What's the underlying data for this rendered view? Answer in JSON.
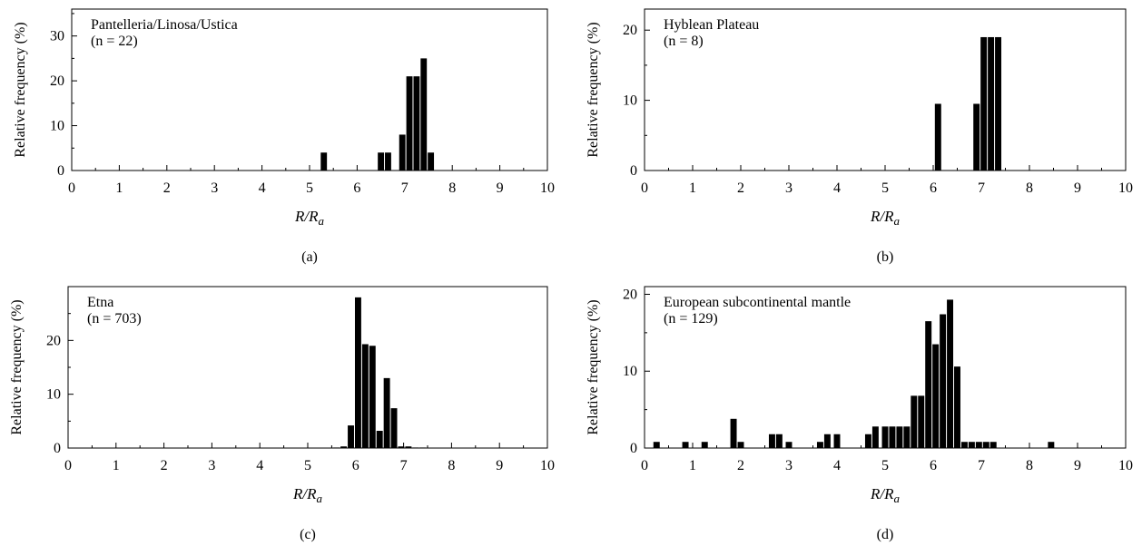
{
  "figure": {
    "panels": [
      {
        "id": "a",
        "caption": "(a)",
        "site": "Pantelleria/Linosa/Ustica",
        "n_label": "(n = 22)"
      },
      {
        "id": "b",
        "caption": "(b)",
        "site": "Hyblean Plateau",
        "n_label": "(n = 8)"
      },
      {
        "id": "c",
        "caption": "(c)",
        "site": "Etna",
        "n_label": "(n = 703)"
      },
      {
        "id": "d",
        "caption": "(d)",
        "site": "European subcontinental mantle",
        "n_label": "(n = 129)"
      }
    ]
  },
  "chart_data": [
    {
      "type": "bar",
      "title": "Pantelleria/Linosa/Ustica",
      "annotation": "(n = 22)",
      "xlabel": "R/Ra",
      "ylabel": "Relative frequency (%)",
      "xlim": [
        0,
        10
      ],
      "ylim": [
        0,
        36
      ],
      "xticks": [
        0,
        1,
        2,
        3,
        4,
        5,
        6,
        7,
        8,
        9,
        10
      ],
      "yticks": [
        0,
        10,
        20,
        30
      ],
      "bin_width": 0.15,
      "x": [
        5.3,
        6.5,
        6.65,
        6.95,
        7.1,
        7.25,
        7.4,
        7.55
      ],
      "values": [
        4,
        4,
        4,
        8,
        21,
        21,
        25,
        4
      ]
    },
    {
      "type": "bar",
      "title": "Hyblean Plateau",
      "annotation": "(n = 8)",
      "xlabel": "R/Ra",
      "ylabel": "Relative frequency (%)",
      "xlim": [
        0,
        10
      ],
      "ylim": [
        0,
        23
      ],
      "xticks": [
        0,
        1,
        2,
        3,
        4,
        5,
        6,
        7,
        8,
        9,
        10
      ],
      "yticks": [
        0,
        10,
        20
      ],
      "bin_width": 0.15,
      "x": [
        6.1,
        6.9,
        7.05,
        7.2,
        7.35
      ],
      "values": [
        9.5,
        9.5,
        19,
        19,
        19
      ]
    },
    {
      "type": "bar",
      "title": "Etna",
      "annotation": "(n = 703)",
      "xlabel": "R/Ra",
      "ylabel": "Relative frequency (%)",
      "xlim": [
        0,
        10
      ],
      "ylim": [
        0,
        30
      ],
      "xticks": [
        0,
        1,
        2,
        3,
        4,
        5,
        6,
        7,
        8,
        9,
        10
      ],
      "yticks": [
        0,
        10,
        20
      ],
      "bin_width": 0.15,
      "x": [
        5.6,
        5.75,
        5.9,
        6.05,
        6.2,
        6.35,
        6.5,
        6.65,
        6.8,
        6.95,
        7.1,
        7.25,
        7.4
      ],
      "values": [
        0.1,
        0.3,
        4.2,
        28,
        19.3,
        19,
        3.2,
        13,
        7.4,
        0.3,
        0.3,
        0.1,
        0.1
      ]
    },
    {
      "type": "bar",
      "title": "European subcontinental mantle",
      "annotation": "(n = 129)",
      "xlabel": "R/Ra",
      "ylabel": "Relative frequency (%)",
      "xlim": [
        0,
        10
      ],
      "ylim": [
        0,
        21
      ],
      "xticks": [
        0,
        1,
        2,
        3,
        4,
        5,
        6,
        7,
        8,
        9,
        10
      ],
      "yticks": [
        0,
        10,
        20
      ],
      "bin_width": 0.15,
      "x": [
        0.25,
        0.85,
        1.25,
        1.85,
        2.0,
        2.65,
        2.8,
        3.0,
        3.65,
        3.8,
        4.0,
        4.65,
        4.8,
        5.0,
        5.15,
        5.3,
        5.45,
        5.6,
        5.75,
        5.9,
        6.05,
        6.2,
        6.35,
        6.5,
        6.65,
        6.8,
        6.95,
        7.1,
        7.25,
        8.45
      ],
      "values": [
        0.8,
        0.8,
        0.8,
        3.8,
        0.8,
        1.8,
        1.8,
        0.8,
        0.8,
        1.8,
        1.8,
        1.8,
        2.8,
        2.8,
        2.8,
        2.8,
        2.8,
        6.8,
        6.8,
        16.5,
        13.5,
        17.4,
        19.3,
        10.6,
        0.8,
        0.8,
        0.8,
        0.8,
        0.8,
        0.8
      ]
    }
  ]
}
